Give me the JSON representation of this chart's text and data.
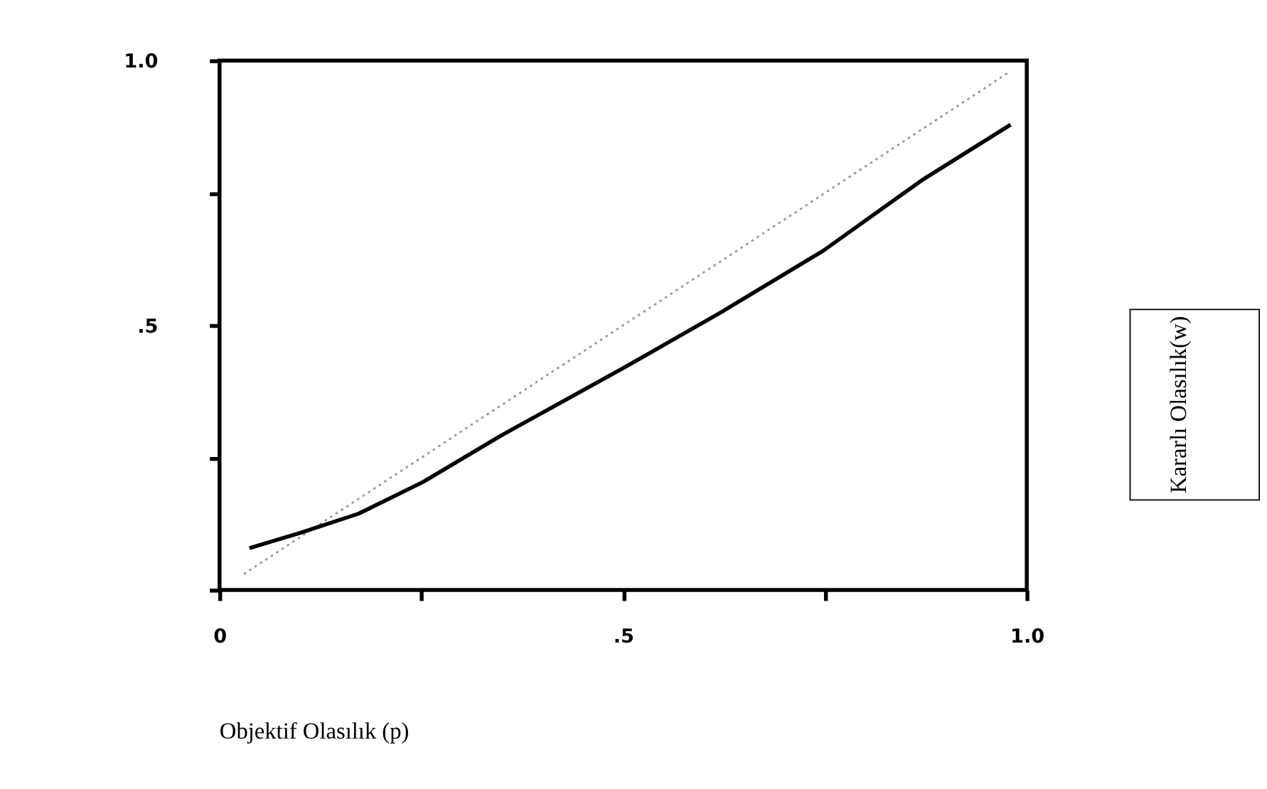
{
  "chart_data": {
    "type": "line",
    "xlabel": "Objektif Olasılık (p)",
    "annotations": [
      "Kararlı Olasılık(w)"
    ],
    "xlim": [
      0,
      1
    ],
    "ylim": [
      0,
      1
    ],
    "xticks": [
      {
        "value": 0,
        "label": "0"
      },
      {
        "value": 0.25,
        "label": null
      },
      {
        "value": 0.5,
        "label": ".5"
      },
      {
        "value": 0.75,
        "label": null
      },
      {
        "value": 1,
        "label": "1.0"
      }
    ],
    "yticks": [
      {
        "value": 0,
        "label": null
      },
      {
        "value": 0.25,
        "label": null
      },
      {
        "value": 0.5,
        "label": ".5"
      },
      {
        "value": 0.75,
        "label": null
      },
      {
        "value": 1,
        "label": "1.0"
      }
    ],
    "grid": false,
    "series": [
      {
        "color": "#999999",
        "line_style": "dotted",
        "x": [
          0.03,
          0.98
        ],
        "values": [
          0.03,
          0.98
        ]
      },
      {
        "color": "#000000",
        "line_style": "solid",
        "x": [
          0.037,
          0.1,
          0.172,
          0.252,
          0.349,
          0.5,
          0.624,
          0.748,
          0.872,
          0.98
        ],
        "values": [
          0.079,
          0.108,
          0.144,
          0.204,
          0.292,
          0.419,
          0.527,
          0.641,
          0.776,
          0.879
        ]
      }
    ]
  }
}
